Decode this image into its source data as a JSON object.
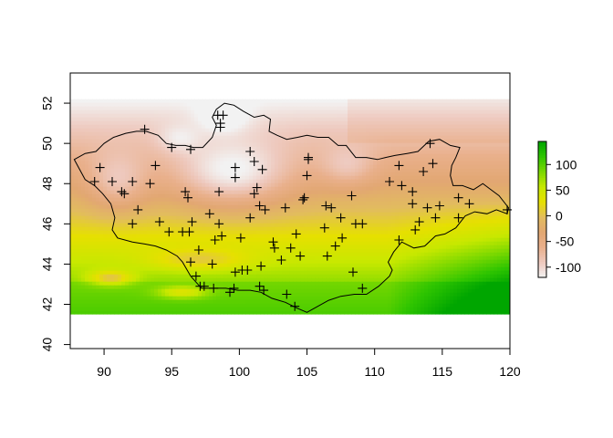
{
  "chart_data": {
    "type": "heatmap",
    "title": "",
    "xlabel": "",
    "ylabel": "",
    "xlim": [
      87.5,
      120
    ],
    "ylim": [
      39.8,
      53.5
    ],
    "raster_extent": {
      "xmin": 87.5,
      "xmax": 120,
      "ymin": 41.5,
      "ymax": 52.2
    },
    "x_ticks": [
      90,
      95,
      100,
      105,
      110,
      115,
      120
    ],
    "y_ticks": [
      40,
      42,
      44,
      46,
      48,
      50,
      52
    ],
    "legend": {
      "position": "right",
      "min": -120,
      "max": 145,
      "ticks": [
        100,
        50,
        0,
        -50,
        -100
      ],
      "colors": [
        "#f2f2f2",
        "#eec9be",
        "#e9b08c",
        "#e2a772",
        "#e2bc5e",
        "#e6e000",
        "#c7e800",
        "#7bd800",
        "#2fc500",
        "#00a600"
      ]
    },
    "boundary": [
      [
        87.8,
        49.2
      ],
      [
        88.6,
        49.5
      ],
      [
        89.4,
        49.6
      ],
      [
        90.0,
        50.0
      ],
      [
        90.7,
        50.3
      ],
      [
        91.6,
        50.5
      ],
      [
        92.4,
        50.6
      ],
      [
        93.1,
        50.6
      ],
      [
        94.0,
        50.4
      ],
      [
        94.6,
        50.0
      ],
      [
        95.3,
        49.9
      ],
      [
        96.0,
        49.9
      ],
      [
        96.6,
        49.8
      ],
      [
        97.3,
        49.8
      ],
      [
        98.0,
        50.3
      ],
      [
        98.3,
        50.9
      ],
      [
        98.0,
        51.3
      ],
      [
        98.3,
        51.7
      ],
      [
        98.9,
        52.0
      ],
      [
        99.6,
        51.9
      ],
      [
        100.3,
        51.6
      ],
      [
        101.1,
        51.3
      ],
      [
        101.8,
        51.4
      ],
      [
        102.3,
        51.2
      ],
      [
        102.2,
        50.6
      ],
      [
        102.8,
        50.4
      ],
      [
        103.5,
        50.2
      ],
      [
        104.3,
        50.3
      ],
      [
        105.0,
        50.4
      ],
      [
        105.8,
        50.3
      ],
      [
        106.6,
        50.3
      ],
      [
        107.3,
        49.9
      ],
      [
        107.9,
        49.9
      ],
      [
        108.6,
        49.3
      ],
      [
        109.4,
        49.3
      ],
      [
        110.2,
        49.2
      ],
      [
        110.8,
        49.3
      ],
      [
        111.5,
        49.4
      ],
      [
        112.4,
        49.5
      ],
      [
        113.2,
        49.6
      ],
      [
        114.0,
        50.1
      ],
      [
        114.8,
        50.2
      ],
      [
        115.6,
        49.9
      ],
      [
        116.3,
        49.8
      ],
      [
        116.0,
        49.3
      ],
      [
        115.7,
        48.9
      ],
      [
        115.6,
        48.4
      ],
      [
        115.8,
        47.9
      ],
      [
        116.5,
        47.9
      ],
      [
        117.3,
        47.7
      ],
      [
        118.0,
        48.0
      ],
      [
        118.6,
        47.7
      ],
      [
        119.2,
        47.4
      ],
      [
        119.9,
        46.8
      ],
      [
        119.8,
        46.5
      ],
      [
        119.0,
        46.7
      ],
      [
        118.3,
        46.5
      ],
      [
        117.4,
        46.6
      ],
      [
        116.7,
        46.4
      ],
      [
        116.0,
        45.8
      ],
      [
        115.2,
        45.5
      ],
      [
        114.5,
        45.4
      ],
      [
        113.7,
        44.9
      ],
      [
        112.9,
        44.8
      ],
      [
        112.0,
        45.1
      ],
      [
        111.4,
        44.6
      ],
      [
        111.0,
        44.1
      ],
      [
        111.3,
        43.7
      ],
      [
        111.1,
        43.4
      ],
      [
        110.3,
        42.9
      ],
      [
        109.4,
        42.5
      ],
      [
        108.5,
        42.5
      ],
      [
        107.5,
        42.4
      ],
      [
        106.6,
        42.2
      ],
      [
        105.8,
        41.9
      ],
      [
        105.0,
        41.6
      ],
      [
        104.3,
        41.8
      ],
      [
        103.4,
        42.1
      ],
      [
        102.4,
        42.3
      ],
      [
        101.6,
        42.6
      ],
      [
        100.8,
        42.7
      ],
      [
        99.9,
        42.7
      ],
      [
        99.0,
        42.8
      ],
      [
        98.2,
        42.8
      ],
      [
        97.2,
        42.8
      ],
      [
        96.4,
        43.4
      ],
      [
        95.8,
        44.1
      ],
      [
        95.4,
        44.4
      ],
      [
        94.6,
        44.7
      ],
      [
        93.8,
        44.9
      ],
      [
        93.0,
        45.0
      ],
      [
        92.1,
        45.1
      ],
      [
        91.0,
        45.3
      ],
      [
        90.6,
        45.7
      ],
      [
        90.8,
        46.3
      ],
      [
        90.5,
        47.0
      ],
      [
        89.9,
        47.5
      ],
      [
        89.3,
        47.9
      ],
      [
        88.6,
        48.2
      ],
      [
        87.8,
        49.2
      ]
    ],
    "stations": [
      [
        98.4,
        51.4
      ],
      [
        98.8,
        51.4
      ],
      [
        98.6,
        51.0
      ],
      [
        98.6,
        50.8
      ],
      [
        93.0,
        50.7
      ],
      [
        95.0,
        49.8
      ],
      [
        96.4,
        49.7
      ],
      [
        100.8,
        49.6
      ],
      [
        105.1,
        49.3
      ],
      [
        105.1,
        49.2
      ],
      [
        114.1,
        50.0
      ],
      [
        89.7,
        48.8
      ],
      [
        93.8,
        48.9
      ],
      [
        99.7,
        48.8
      ],
      [
        101.1,
        49.1
      ],
      [
        101.7,
        48.7
      ],
      [
        111.8,
        48.9
      ],
      [
        114.3,
        49.0
      ],
      [
        90.6,
        48.1
      ],
      [
        89.3,
        48.1
      ],
      [
        92.1,
        48.1
      ],
      [
        93.4,
        48.0
      ],
      [
        96.0,
        47.6
      ],
      [
        96.2,
        47.3
      ],
      [
        98.5,
        47.6
      ],
      [
        99.7,
        48.3
      ],
      [
        101.3,
        47.8
      ],
      [
        101.1,
        47.5
      ],
      [
        105.0,
        48.4
      ],
      [
        108.3,
        47.4
      ],
      [
        111.1,
        48.1
      ],
      [
        112.0,
        47.9
      ],
      [
        112.8,
        47.6
      ],
      [
        113.6,
        48.6
      ],
      [
        91.3,
        47.6
      ],
      [
        91.5,
        47.5
      ],
      [
        92.5,
        46.7
      ],
      [
        92.1,
        46.0
      ],
      [
        94.1,
        46.1
      ],
      [
        96.5,
        46.1
      ],
      [
        96.3,
        45.6
      ],
      [
        97.8,
        46.5
      ],
      [
        98.5,
        46.0
      ],
      [
        98.7,
        45.4
      ],
      [
        100.8,
        46.3
      ],
      [
        101.5,
        46.9
      ],
      [
        101.9,
        46.7
      ],
      [
        103.4,
        46.8
      ],
      [
        104.7,
        47.2
      ],
      [
        104.8,
        47.3
      ],
      [
        106.4,
        46.9
      ],
      [
        106.8,
        46.8
      ],
      [
        107.5,
        46.3
      ],
      [
        108.6,
        46.0
      ],
      [
        109.1,
        46.0
      ],
      [
        112.8,
        47.0
      ],
      [
        113.9,
        46.8
      ],
      [
        114.8,
        46.9
      ],
      [
        116.2,
        47.3
      ],
      [
        117.0,
        47.0
      ],
      [
        119.8,
        46.7
      ],
      [
        113.3,
        46.1
      ],
      [
        116.2,
        46.3
      ],
      [
        94.8,
        45.6
      ],
      [
        95.8,
        45.6
      ],
      [
        97.0,
        44.7
      ],
      [
        98.2,
        45.2
      ],
      [
        100.1,
        45.3
      ],
      [
        102.5,
        45.1
      ],
      [
        102.6,
        44.8
      ],
      [
        103.8,
        44.8
      ],
      [
        104.2,
        45.5
      ],
      [
        106.3,
        45.8
      ],
      [
        106.5,
        44.4
      ],
      [
        107.1,
        44.9
      ],
      [
        107.6,
        45.3
      ],
      [
        111.8,
        45.2
      ],
      [
        113.0,
        45.7
      ],
      [
        114.5,
        46.3
      ],
      [
        96.4,
        44.1
      ],
      [
        98.0,
        44.0
      ],
      [
        99.7,
        43.6
      ],
      [
        100.2,
        43.7
      ],
      [
        100.6,
        43.7
      ],
      [
        101.6,
        43.9
      ],
      [
        103.1,
        44.2
      ],
      [
        104.5,
        44.4
      ],
      [
        108.4,
        43.6
      ],
      [
        96.8,
        43.4
      ],
      [
        97.1,
        42.9
      ],
      [
        97.4,
        42.9
      ],
      [
        98.1,
        42.8
      ],
      [
        99.3,
        42.6
      ],
      [
        99.6,
        42.8
      ],
      [
        101.5,
        42.9
      ],
      [
        101.8,
        42.7
      ],
      [
        103.5,
        42.5
      ],
      [
        104.1,
        41.9
      ],
      [
        109.1,
        42.8
      ]
    ]
  }
}
